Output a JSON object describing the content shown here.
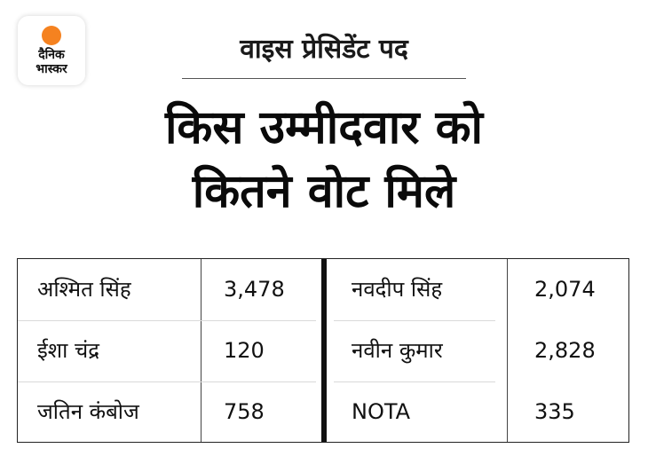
{
  "brand": {
    "line1": "दैनिक",
    "line2": "भास्कर",
    "accent": "#f58220"
  },
  "header": {
    "subtitle": "वाइस प्रेसिडेंट पद",
    "title_line1": "किस उम्मीदवार को",
    "title_line2": "कितने वोट मिले"
  },
  "table": {
    "left": [
      {
        "name": "अश्मित सिंह",
        "votes": "3,478"
      },
      {
        "name": "ईशा चंद्र",
        "votes": "120"
      },
      {
        "name": "जतिन कंबोज",
        "votes": "758"
      }
    ],
    "right": [
      {
        "name": "नवदीप सिंह",
        "votes": "2,074"
      },
      {
        "name": "नवीन कुमार",
        "votes": "2,828"
      },
      {
        "name": "NOTA",
        "votes": "335"
      }
    ]
  }
}
